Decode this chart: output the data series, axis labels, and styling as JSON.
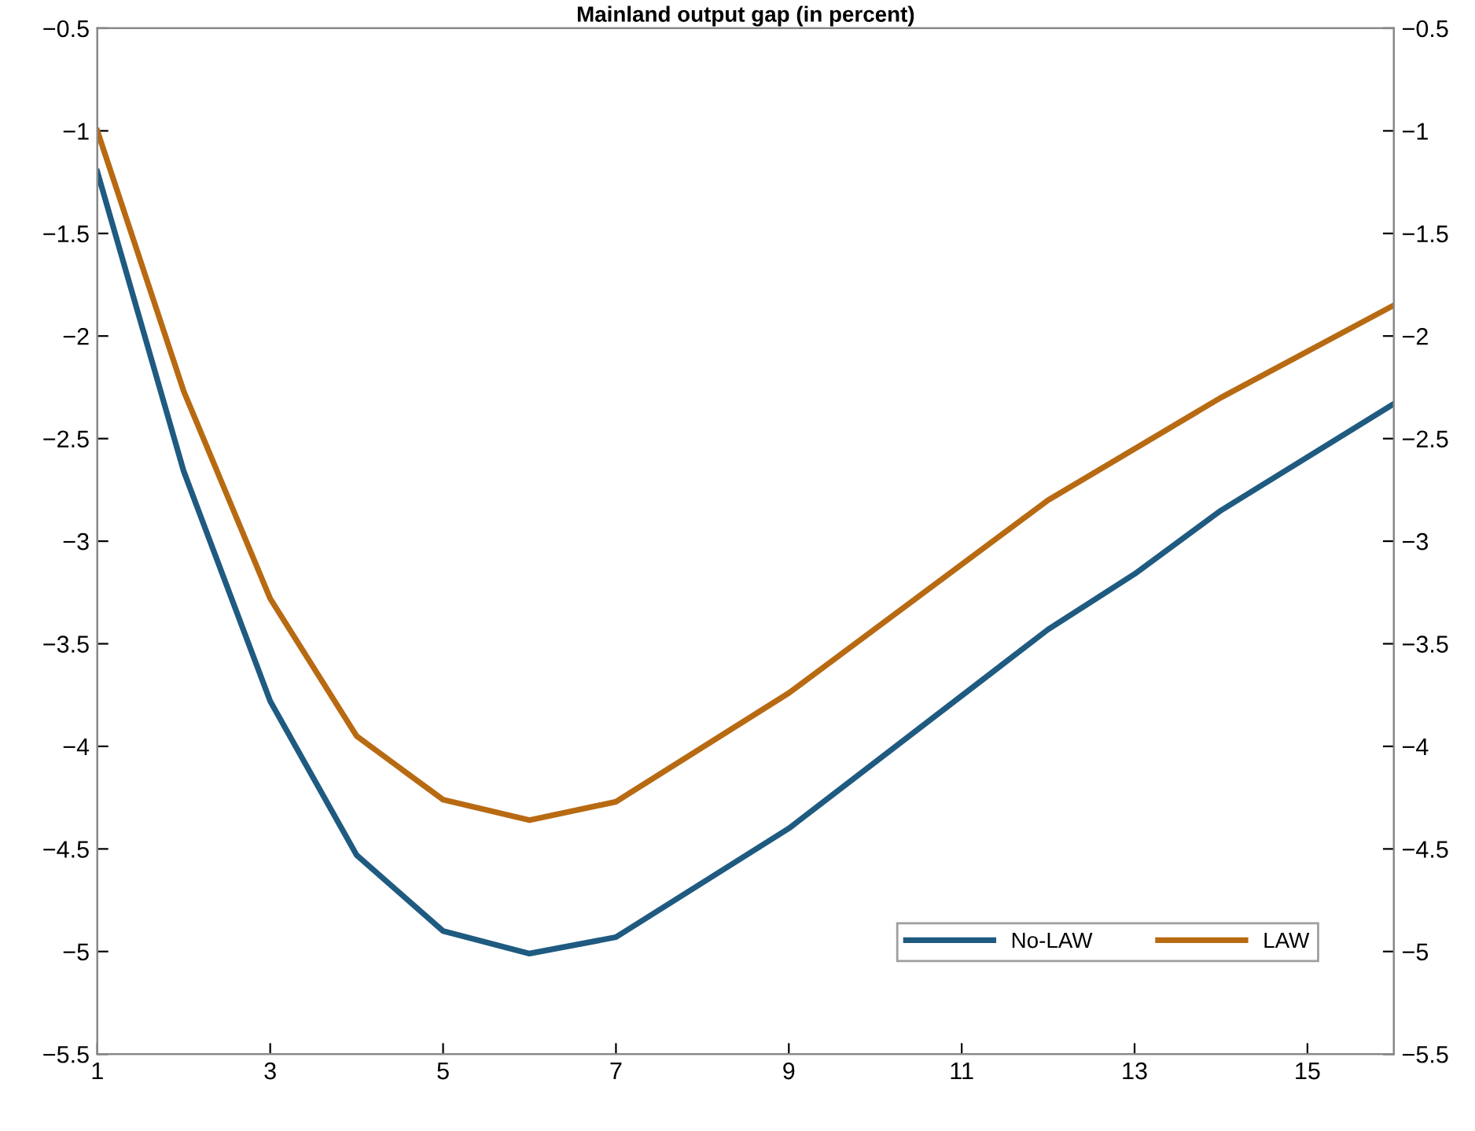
{
  "chart_data": {
    "type": "line",
    "title": "Mainland output gap (in percent)",
    "series": [
      {
        "name": "No-LAW",
        "color": "#1f5a80",
        "x": [
          1,
          2,
          3,
          4,
          5,
          6,
          7,
          9,
          12,
          13,
          14,
          16
        ],
        "values": [
          -1.2,
          -2.66,
          -3.78,
          -4.53,
          -4.9,
          -5.01,
          -4.93,
          -4.4,
          -3.43,
          -3.16,
          -2.85,
          -2.33
        ]
      },
      {
        "name": "LAW",
        "color": "#b86a12",
        "x": [
          1,
          2,
          3,
          4,
          5,
          6,
          7,
          9,
          12,
          14,
          16
        ],
        "values": [
          -1.0,
          -2.27,
          -3.28,
          -3.95,
          -4.26,
          -4.36,
          -4.27,
          -3.74,
          -2.8,
          -2.3,
          -1.85
        ]
      }
    ],
    "xlim": [
      1,
      16
    ],
    "xticks": [
      1,
      3,
      5,
      7,
      9,
      11,
      13,
      15
    ],
    "ylim": [
      -5.5,
      -0.5
    ],
    "yticks": [
      -5.5,
      -5,
      -4.5,
      -4,
      -3.5,
      -3,
      -2.5,
      -2,
      -1.5,
      -1,
      -0.5
    ],
    "y2lim": [
      -5.5,
      -0.5
    ],
    "y2ticks": [
      -5.5,
      -5,
      -4.5,
      -4,
      -3.5,
      -3,
      -2.5,
      -2,
      -1.5,
      -1,
      -0.5
    ],
    "legend": "bottom right",
    "grid": false,
    "marker": "none",
    "line_style": "solid"
  }
}
